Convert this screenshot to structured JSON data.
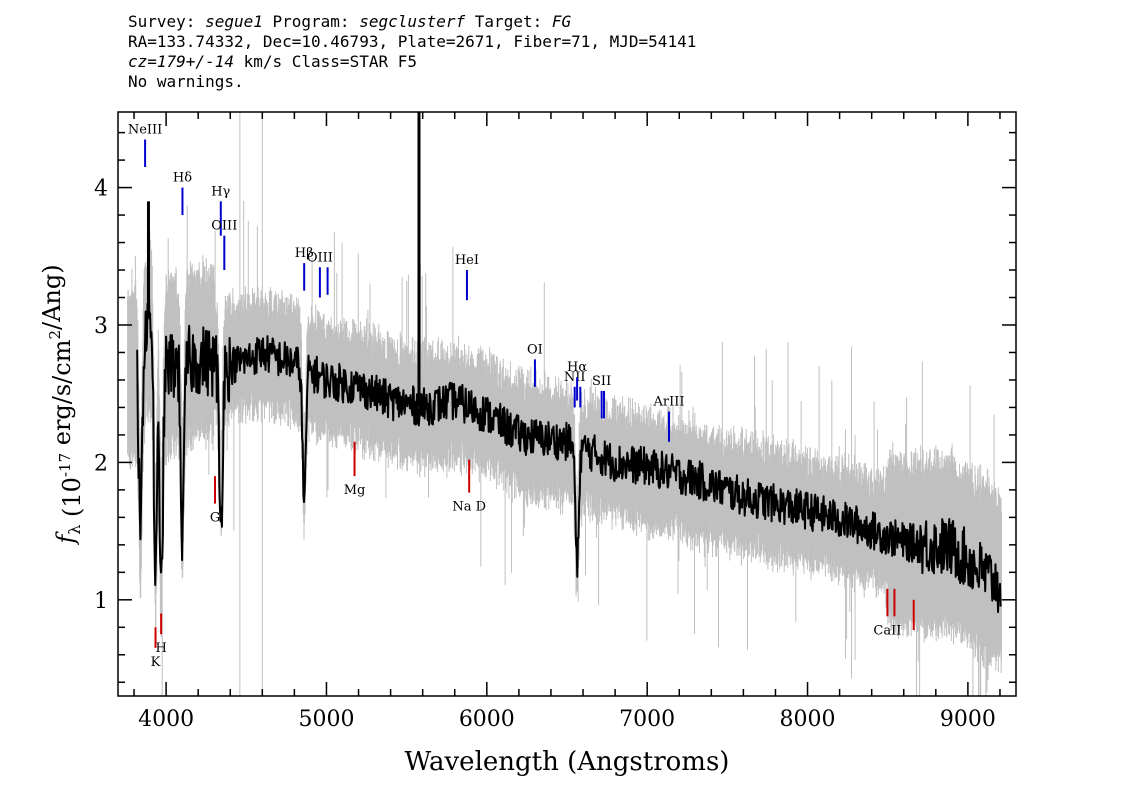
{
  "header": {
    "line1": {
      "survey_label": "Survey: ",
      "survey": "segue1",
      "program_label": " Program: ",
      "program": "segclusterf",
      "target_label": " Target: ",
      "target": "FG"
    },
    "line2": "RA=133.74332, Dec=10.46793, Plate=2671, Fiber=71, MJD=54141",
    "line3": {
      "cz_label": "cz=179+/-14",
      "rest": " km/s Class=STAR F5"
    },
    "line4": "No warnings."
  },
  "chart_data": {
    "type": "line",
    "xlabel": "Wavelength (Angstroms)",
    "ylabel": "f_λ (10^-17 erg/s/cm^2/Ang)",
    "xlim": [
      3700,
      9300
    ],
    "ylim": [
      0.3,
      4.55
    ],
    "xticks": [
      4000,
      5000,
      6000,
      7000,
      8000,
      9000
    ],
    "yticks": [
      1,
      2,
      3,
      4
    ],
    "grid": false,
    "series": [
      {
        "color": "#c0c0c0",
        "style": "error-band",
        "x": [
          3800,
          3900,
          4000,
          4200,
          4400,
          4600,
          4800,
          5000,
          5200,
          5400,
          5600,
          5800,
          6000,
          6200,
          6500,
          6800,
          7000,
          7300,
          7600,
          8000,
          8300,
          8600,
          8900,
          9200
        ],
        "values": [
          2.6,
          3.0,
          2.7,
          2.8,
          2.75,
          2.8,
          2.72,
          2.6,
          2.55,
          2.45,
          2.4,
          2.4,
          2.35,
          2.2,
          2.1,
          2.0,
          1.95,
          1.85,
          1.75,
          1.65,
          1.55,
          1.4,
          1.4,
          1.15
        ]
      },
      {
        "color": "#000000",
        "style": "flux",
        "x": [
          3800,
          3900,
          4000,
          4200,
          4400,
          4600,
          4800,
          5000,
          5200,
          5400,
          5600,
          5800,
          6000,
          6200,
          6500,
          6800,
          7000,
          7300,
          7600,
          8000,
          8300,
          8600,
          8900,
          9200
        ],
        "values": [
          2.7,
          3.1,
          2.7,
          2.75,
          2.7,
          2.8,
          2.72,
          2.6,
          2.55,
          2.45,
          2.4,
          2.45,
          2.35,
          2.2,
          2.15,
          2.0,
          1.97,
          1.88,
          1.75,
          1.65,
          1.55,
          1.42,
          1.38,
          1.1
        ]
      }
    ],
    "absorption_dips": [
      {
        "x": 3840,
        "depth": 1.45
      },
      {
        "x": 3934,
        "depth": 1.9
      },
      {
        "x": 3970,
        "depth": 1.8
      },
      {
        "x": 4102,
        "depth": 1.3
      },
      {
        "x": 4341,
        "depth": 1.2
      },
      {
        "x": 4861,
        "depth": 1.0
      },
      {
        "x": 6563,
        "depth": 0.9
      }
    ],
    "spikes": [
      {
        "x": 5577,
        "value": 4.55
      },
      {
        "x": 3890,
        "value": 3.9
      }
    ],
    "emission_lines": [
      {
        "label": "NeIII",
        "x": 3869,
        "y0": 4.15,
        "y1": 4.35
      },
      {
        "label": "Hδ",
        "x": 4102,
        "y0": 3.8,
        "y1": 4.0
      },
      {
        "label": "Hγ",
        "x": 4341,
        "y0": 3.65,
        "y1": 3.9
      },
      {
        "label": "OIII",
        "x": 4363,
        "y0": 3.4,
        "y1": 3.65
      },
      {
        "label": "Hβ",
        "x": 4861,
        "y0": 3.25,
        "y1": 3.45
      },
      {
        "label": "OIII",
        "x": 4959,
        "y0": 3.2,
        "y1": 3.42
      },
      {
        "label": "",
        "x": 5007,
        "y0": 3.22,
        "y1": 3.42
      },
      {
        "label": "HeI",
        "x": 5876,
        "y0": 3.18,
        "y1": 3.4
      },
      {
        "label": "OI",
        "x": 6300,
        "y0": 2.55,
        "y1": 2.75
      },
      {
        "label": "NII",
        "x": 6548,
        "y0": 2.4,
        "y1": 2.55
      },
      {
        "label": "Hα",
        "x": 6563,
        "y0": 2.45,
        "y1": 2.62
      },
      {
        "label": "",
        "x": 6583,
        "y0": 2.4,
        "y1": 2.55
      },
      {
        "label": "SII",
        "x": 6716,
        "y0": 2.32,
        "y1": 2.52
      },
      {
        "label": "",
        "x": 6731,
        "y0": 2.32,
        "y1": 2.52
      },
      {
        "label": "ArIII",
        "x": 7136,
        "y0": 2.15,
        "y1": 2.37
      }
    ],
    "absorption_lines": [
      {
        "label": "K",
        "x": 3934,
        "y0": 0.65,
        "y1": 0.8
      },
      {
        "label": "H",
        "x": 3969,
        "y0": 0.75,
        "y1": 0.9
      },
      {
        "label": "G",
        "x": 4305,
        "y0": 1.7,
        "y1": 1.9
      },
      {
        "label": "Mg",
        "x": 5175,
        "y0": 1.9,
        "y1": 2.15
      },
      {
        "label": "Na D",
        "x": 5890,
        "y0": 1.78,
        "y1": 2.02
      },
      {
        "label": "CaII",
        "x": 8498,
        "y0": 0.88,
        "y1": 1.08
      },
      {
        "label": "",
        "x": 8542,
        "y0": 0.88,
        "y1": 1.08
      },
      {
        "label": "",
        "x": 8662,
        "y0": 0.78,
        "y1": 1.0
      }
    ],
    "emission_line_color": "#0000cc",
    "absorption_line_color": "#cc0000"
  }
}
